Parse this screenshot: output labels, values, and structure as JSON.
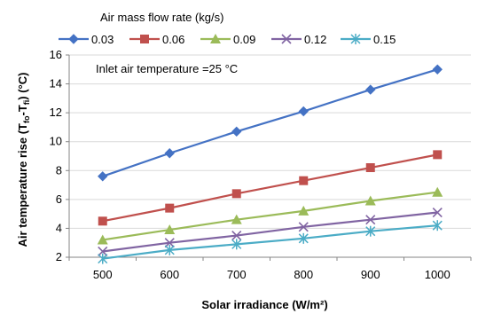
{
  "chart_data": {
    "type": "line",
    "xlabel": "Solar irradiance (W/m²)",
    "ylabel": "Air temperature rise (T",
    "ylabel_sub1": "fo",
    "ylabel_mid": "-T",
    "ylabel_sub2": "fi",
    "ylabel_end": ") (°C)",
    "legend_title": "Air mass flow rate (kg/s)",
    "legend_position": "top",
    "annotation": "Inlet air temperature =25 °C",
    "xlim": [
      450,
      1050
    ],
    "ylim": [
      2,
      16
    ],
    "x_ticks": [
      500,
      600,
      700,
      800,
      900,
      1000
    ],
    "y_ticks": [
      2,
      4,
      6,
      8,
      10,
      12,
      14,
      16
    ],
    "grid": "horizontal",
    "x": [
      500,
      600,
      700,
      800,
      900,
      1000
    ],
    "series": [
      {
        "name": "0.03",
        "color": "#4472C4",
        "marker": "diamond",
        "values": [
          7.6,
          9.2,
          10.7,
          12.1,
          13.6,
          15.0
        ]
      },
      {
        "name": "0.06",
        "color": "#C0504D",
        "marker": "square",
        "values": [
          4.5,
          5.4,
          6.4,
          7.3,
          8.2,
          9.1
        ]
      },
      {
        "name": "0.09",
        "color": "#9BBB59",
        "marker": "triangle",
        "values": [
          3.2,
          3.9,
          4.6,
          5.2,
          5.9,
          6.5
        ]
      },
      {
        "name": "0.12",
        "color": "#8064A2",
        "marker": "x",
        "values": [
          2.4,
          3.0,
          3.5,
          4.1,
          4.6,
          5.1
        ]
      },
      {
        "name": "0.15",
        "color": "#4BACC6",
        "marker": "star",
        "values": [
          1.9,
          2.5,
          2.9,
          3.3,
          3.8,
          4.2
        ]
      }
    ]
  }
}
